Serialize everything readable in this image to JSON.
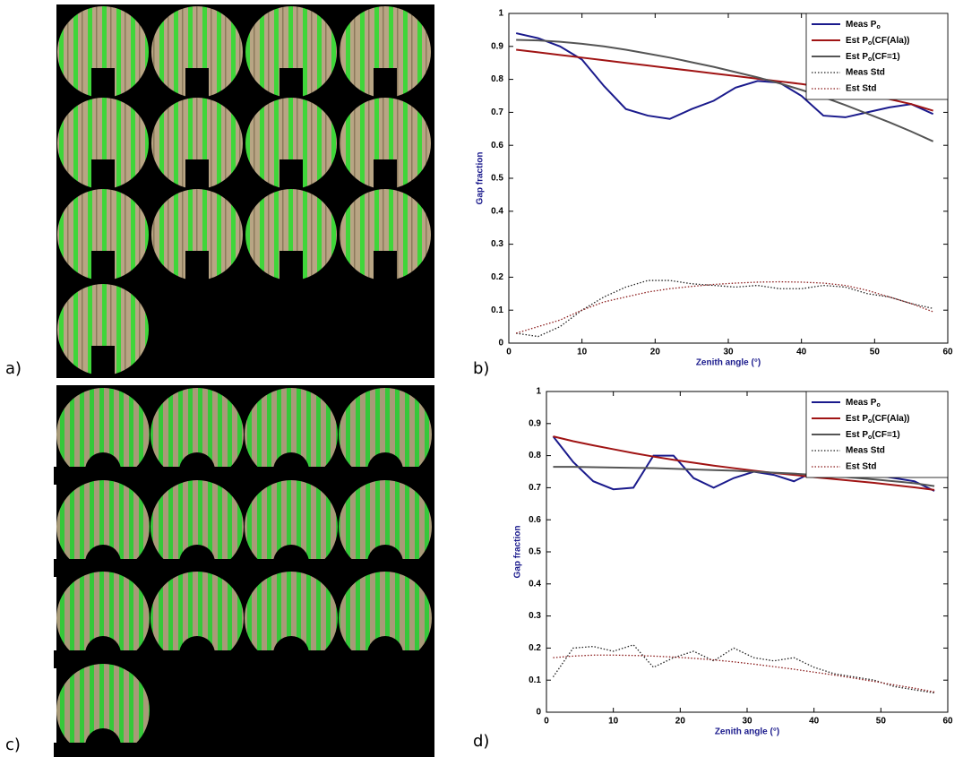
{
  "panels": [
    "a)",
    "b)",
    "c)",
    "d)"
  ],
  "chart_data": [
    {
      "type": "line",
      "xlabel": "Zenith angle (°)",
      "ylabel": "Gap fraction",
      "xlim": [
        0,
        60
      ],
      "xticks": [
        0,
        10,
        20,
        30,
        40,
        50,
        60
      ],
      "ylim": [
        0,
        1
      ],
      "yticks": [
        0,
        0.1,
        0.2,
        0.3,
        0.4,
        0.5,
        0.6,
        0.7,
        0.8,
        0.9,
        1
      ],
      "legend": "upper right",
      "x": [
        1,
        4,
        7,
        10,
        13,
        16,
        19,
        22,
        25,
        28,
        31,
        34,
        37,
        40,
        43,
        46,
        49,
        52,
        55,
        58
      ],
      "series": [
        {
          "name": "Meas Po",
          "color": "#1a1a8c",
          "linestyle": "solid",
          "values": [
            0.94,
            0.925,
            0.9,
            0.86,
            0.78,
            0.71,
            0.69,
            0.68,
            0.71,
            0.735,
            0.775,
            0.795,
            0.79,
            0.75,
            0.69,
            0.685,
            0.7,
            0.715,
            0.725,
            0.695
          ]
        },
        {
          "name": "Est Po(CF(Ala))",
          "color": "#a01414",
          "linestyle": "solid",
          "values": [
            0.89,
            0.882,
            0.874,
            0.866,
            0.858,
            0.85,
            0.842,
            0.834,
            0.826,
            0.818,
            0.81,
            0.802,
            0.794,
            0.786,
            0.776,
            0.766,
            0.754,
            0.74,
            0.725,
            0.705
          ]
        },
        {
          "name": "Est Po(CF=1)",
          "color": "#555555",
          "linestyle": "solid",
          "values": [
            0.92,
            0.918,
            0.914,
            0.908,
            0.9,
            0.89,
            0.878,
            0.866,
            0.852,
            0.838,
            0.822,
            0.806,
            0.788,
            0.768,
            0.746,
            0.722,
            0.696,
            0.67,
            0.642,
            0.612
          ]
        },
        {
          "name": "Meas Std",
          "color": "#222222",
          "linestyle": "dotted",
          "values": [
            0.03,
            0.02,
            0.05,
            0.1,
            0.14,
            0.17,
            0.19,
            0.19,
            0.18,
            0.175,
            0.17,
            0.175,
            0.165,
            0.165,
            0.175,
            0.17,
            0.15,
            0.14,
            0.12,
            0.105
          ]
        },
        {
          "name": "Est Std",
          "color": "#8a1a1a",
          "linestyle": "dotted",
          "values": [
            0.03,
            0.05,
            0.07,
            0.1,
            0.125,
            0.14,
            0.155,
            0.165,
            0.172,
            0.178,
            0.182,
            0.185,
            0.186,
            0.185,
            0.182,
            0.175,
            0.16,
            0.14,
            0.12,
            0.095
          ]
        }
      ]
    },
    {
      "type": "line",
      "xlabel": "Zenith angle (°)",
      "ylabel": "Gap fraction",
      "xlim": [
        0,
        60
      ],
      "xticks": [
        0,
        10,
        20,
        30,
        40,
        50,
        60
      ],
      "ylim": [
        0,
        1
      ],
      "yticks": [
        0,
        0.1,
        0.2,
        0.3,
        0.4,
        0.5,
        0.6,
        0.7,
        0.8,
        0.9,
        1
      ],
      "legend": "upper right",
      "x": [
        1,
        4,
        7,
        10,
        13,
        16,
        19,
        22,
        25,
        28,
        31,
        34,
        37,
        40,
        43,
        46,
        49,
        52,
        55,
        58
      ],
      "series": [
        {
          "name": "Meas Po",
          "color": "#1a1a8c",
          "linestyle": "solid",
          "values": [
            0.86,
            0.78,
            0.72,
            0.695,
            0.7,
            0.8,
            0.8,
            0.73,
            0.7,
            0.73,
            0.75,
            0.74,
            0.72,
            0.75,
            0.75,
            0.75,
            0.74,
            0.73,
            0.72,
            0.69
          ]
        },
        {
          "name": "Est Po(CF(Ala))",
          "color": "#a01414",
          "linestyle": "solid",
          "values": [
            0.86,
            0.845,
            0.832,
            0.82,
            0.808,
            0.797,
            0.787,
            0.778,
            0.769,
            0.761,
            0.753,
            0.746,
            0.74,
            0.733,
            0.727,
            0.721,
            0.715,
            0.708,
            0.701,
            0.693
          ]
        },
        {
          "name": "Est Po(CF=1)",
          "color": "#555555",
          "linestyle": "solid",
          "values": [
            0.765,
            0.765,
            0.764,
            0.763,
            0.762,
            0.761,
            0.759,
            0.757,
            0.755,
            0.753,
            0.75,
            0.747,
            0.744,
            0.74,
            0.736,
            0.731,
            0.726,
            0.72,
            0.714,
            0.705
          ]
        },
        {
          "name": "Meas Std",
          "color": "#222222",
          "linestyle": "dotted",
          "values": [
            0.11,
            0.2,
            0.205,
            0.19,
            0.21,
            0.14,
            0.17,
            0.19,
            0.16,
            0.2,
            0.17,
            0.16,
            0.17,
            0.14,
            0.12,
            0.11,
            0.1,
            0.08,
            0.07,
            0.06
          ]
        },
        {
          "name": "Est Std",
          "color": "#8a1a1a",
          "linestyle": "dotted",
          "values": [
            0.17,
            0.175,
            0.178,
            0.178,
            0.177,
            0.175,
            0.172,
            0.168,
            0.163,
            0.157,
            0.15,
            0.142,
            0.134,
            0.125,
            0.116,
            0.106,
            0.096,
            0.085,
            0.075,
            0.063
          ]
        }
      ]
    }
  ]
}
